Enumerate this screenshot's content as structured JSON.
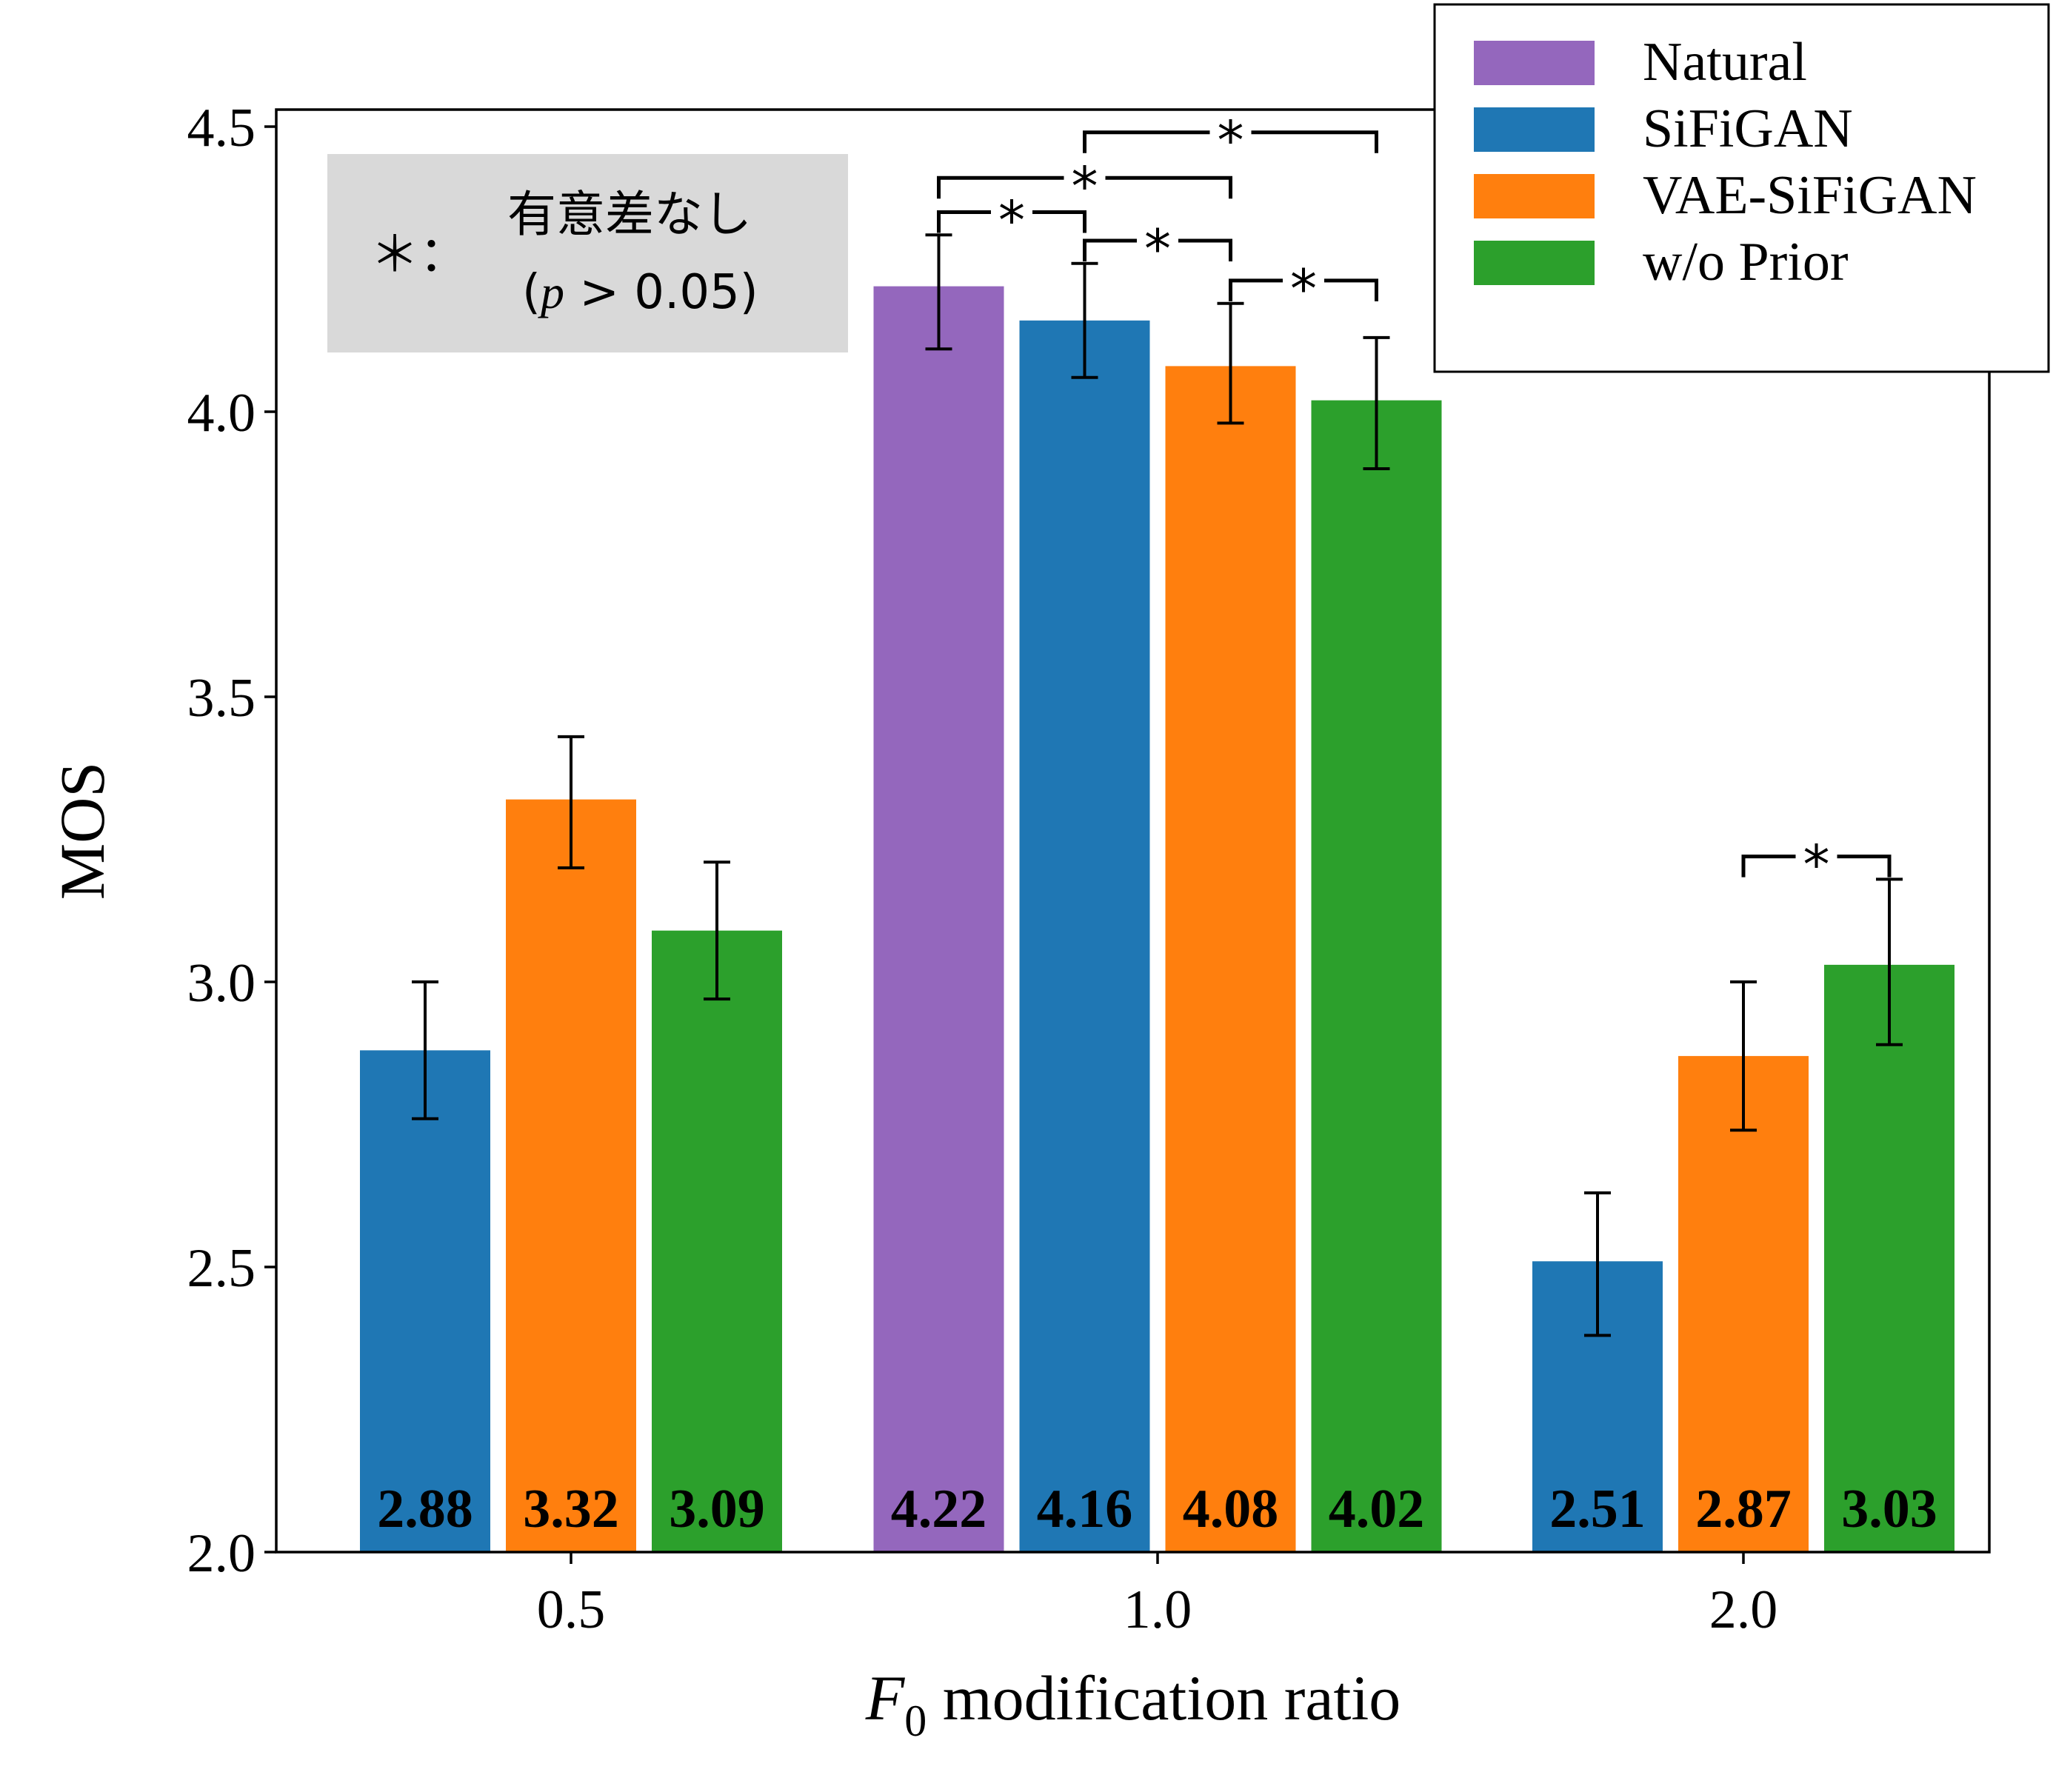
{
  "chart_data": {
    "type": "bar",
    "xlabel": "F0 modification ratio",
    "xlabel_parts": {
      "main": "F",
      "subscript": "0",
      "rest": " modification ratio"
    },
    "ylabel": "MOS",
    "ylim": [
      2.0,
      4.5
    ],
    "yticks": [
      "2.0",
      "2.5",
      "3.0",
      "3.5",
      "4.0",
      "4.5"
    ],
    "grid": false,
    "legend_position": "top-right",
    "colors": {
      "Natural": "#9467bd",
      "SiFiGAN": "#1f77b4",
      "VAE-SiFiGAN": "#ff7f0e",
      "w/o Prior": "#2ca02c"
    },
    "legend": [
      "Natural",
      "SiFiGAN",
      "VAE-SiFiGAN",
      "w/o Prior"
    ],
    "groups": [
      {
        "label": "0.5",
        "bars": [
          {
            "series": "SiFiGAN",
            "value": 2.88,
            "label": "2.88",
            "err_low": 2.76,
            "err_high": 3.0
          },
          {
            "series": "VAE-SiFiGAN",
            "value": 3.32,
            "label": "3.32",
            "err_low": 3.2,
            "err_high": 3.43
          },
          {
            "series": "w/o Prior",
            "value": 3.09,
            "label": "3.09",
            "err_low": 2.97,
            "err_high": 3.21
          }
        ]
      },
      {
        "label": "1.0",
        "bars": [
          {
            "series": "Natural",
            "value": 4.22,
            "label": "4.22",
            "err_low": 4.11,
            "err_high": 4.31
          },
          {
            "series": "SiFiGAN",
            "value": 4.16,
            "label": "4.16",
            "err_low": 4.06,
            "err_high": 4.26
          },
          {
            "series": "VAE-SiFiGAN",
            "value": 4.08,
            "label": "4.08",
            "err_low": 3.98,
            "err_high": 4.19
          },
          {
            "series": "w/o Prior",
            "value": 4.02,
            "label": "4.02",
            "err_low": 3.9,
            "err_high": 4.13
          }
        ]
      },
      {
        "label": "2.0",
        "bars": [
          {
            "series": "SiFiGAN",
            "value": 2.51,
            "label": "2.51",
            "err_low": 2.38,
            "err_high": 2.63
          },
          {
            "series": "VAE-SiFiGAN",
            "value": 2.87,
            "label": "2.87",
            "err_low": 2.74,
            "err_high": 3.0
          },
          {
            "series": "w/o Prior",
            "value": 3.03,
            "label": "3.03",
            "err_low": 2.89,
            "err_high": 3.18
          }
        ]
      }
    ],
    "significance_brackets": [
      {
        "group": "1.0",
        "from": "Natural",
        "to": "SiFiGAN",
        "y": 4.35,
        "mark": "*"
      },
      {
        "group": "1.0",
        "from": "Natural",
        "to": "VAE-SiFiGAN",
        "y": 4.41,
        "mark": "*"
      },
      {
        "group": "1.0",
        "from": "SiFiGAN",
        "to": "w/o Prior",
        "y": 4.49,
        "mark": "*"
      },
      {
        "group": "1.0",
        "from": "SiFiGAN",
        "to": "VAE-SiFiGAN",
        "y": 4.3,
        "mark": "*"
      },
      {
        "group": "1.0",
        "from": "VAE-SiFiGAN",
        "to": "w/o Prior",
        "y": 4.23,
        "mark": "*"
      },
      {
        "group": "2.0",
        "from": "VAE-SiFiGAN",
        "to": "w/o Prior",
        "y": 3.22,
        "mark": "*"
      }
    ],
    "annotation": {
      "symbol": "＊：",
      "line1": "有意差なし",
      "line2": "(p > 0.05)",
      "line2_parts": {
        "open": "(",
        "p": "p",
        "rest": " > 0.05)"
      }
    }
  }
}
